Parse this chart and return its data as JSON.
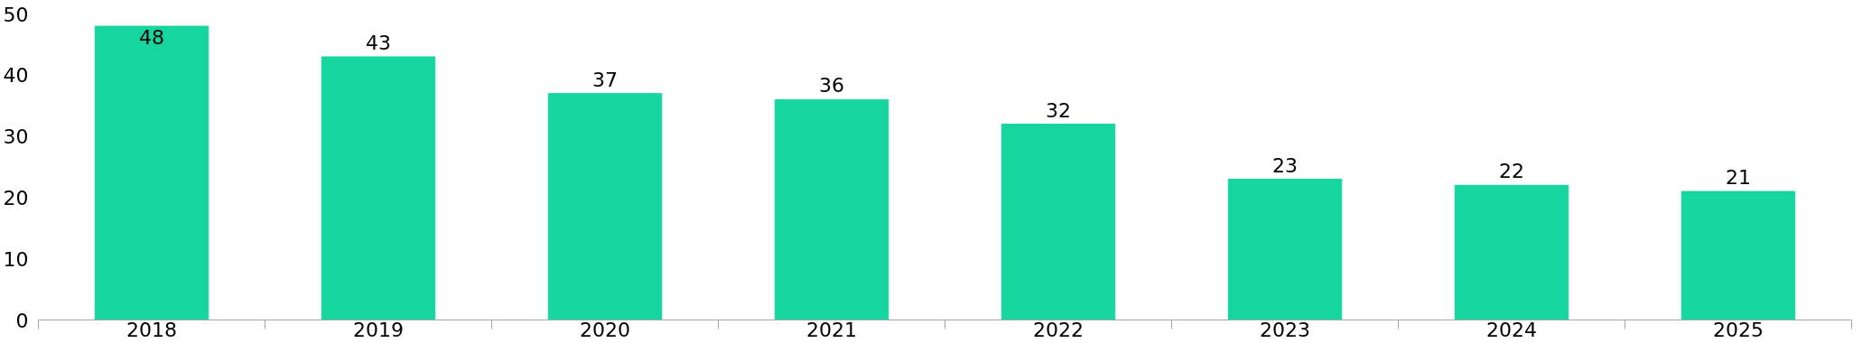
{
  "chart_data": {
    "type": "bar",
    "categories": [
      "2018",
      "2019",
      "2020",
      "2021",
      "2022",
      "2023",
      "2024",
      "2025"
    ],
    "values": [
      48,
      43,
      37,
      36,
      32,
      23,
      22,
      21
    ],
    "color": "#17d59e",
    "ylim": [
      0,
      50
    ],
    "yticks": [
      0,
      10,
      20,
      30,
      40,
      50
    ],
    "data_labels": true,
    "grid": false
  }
}
